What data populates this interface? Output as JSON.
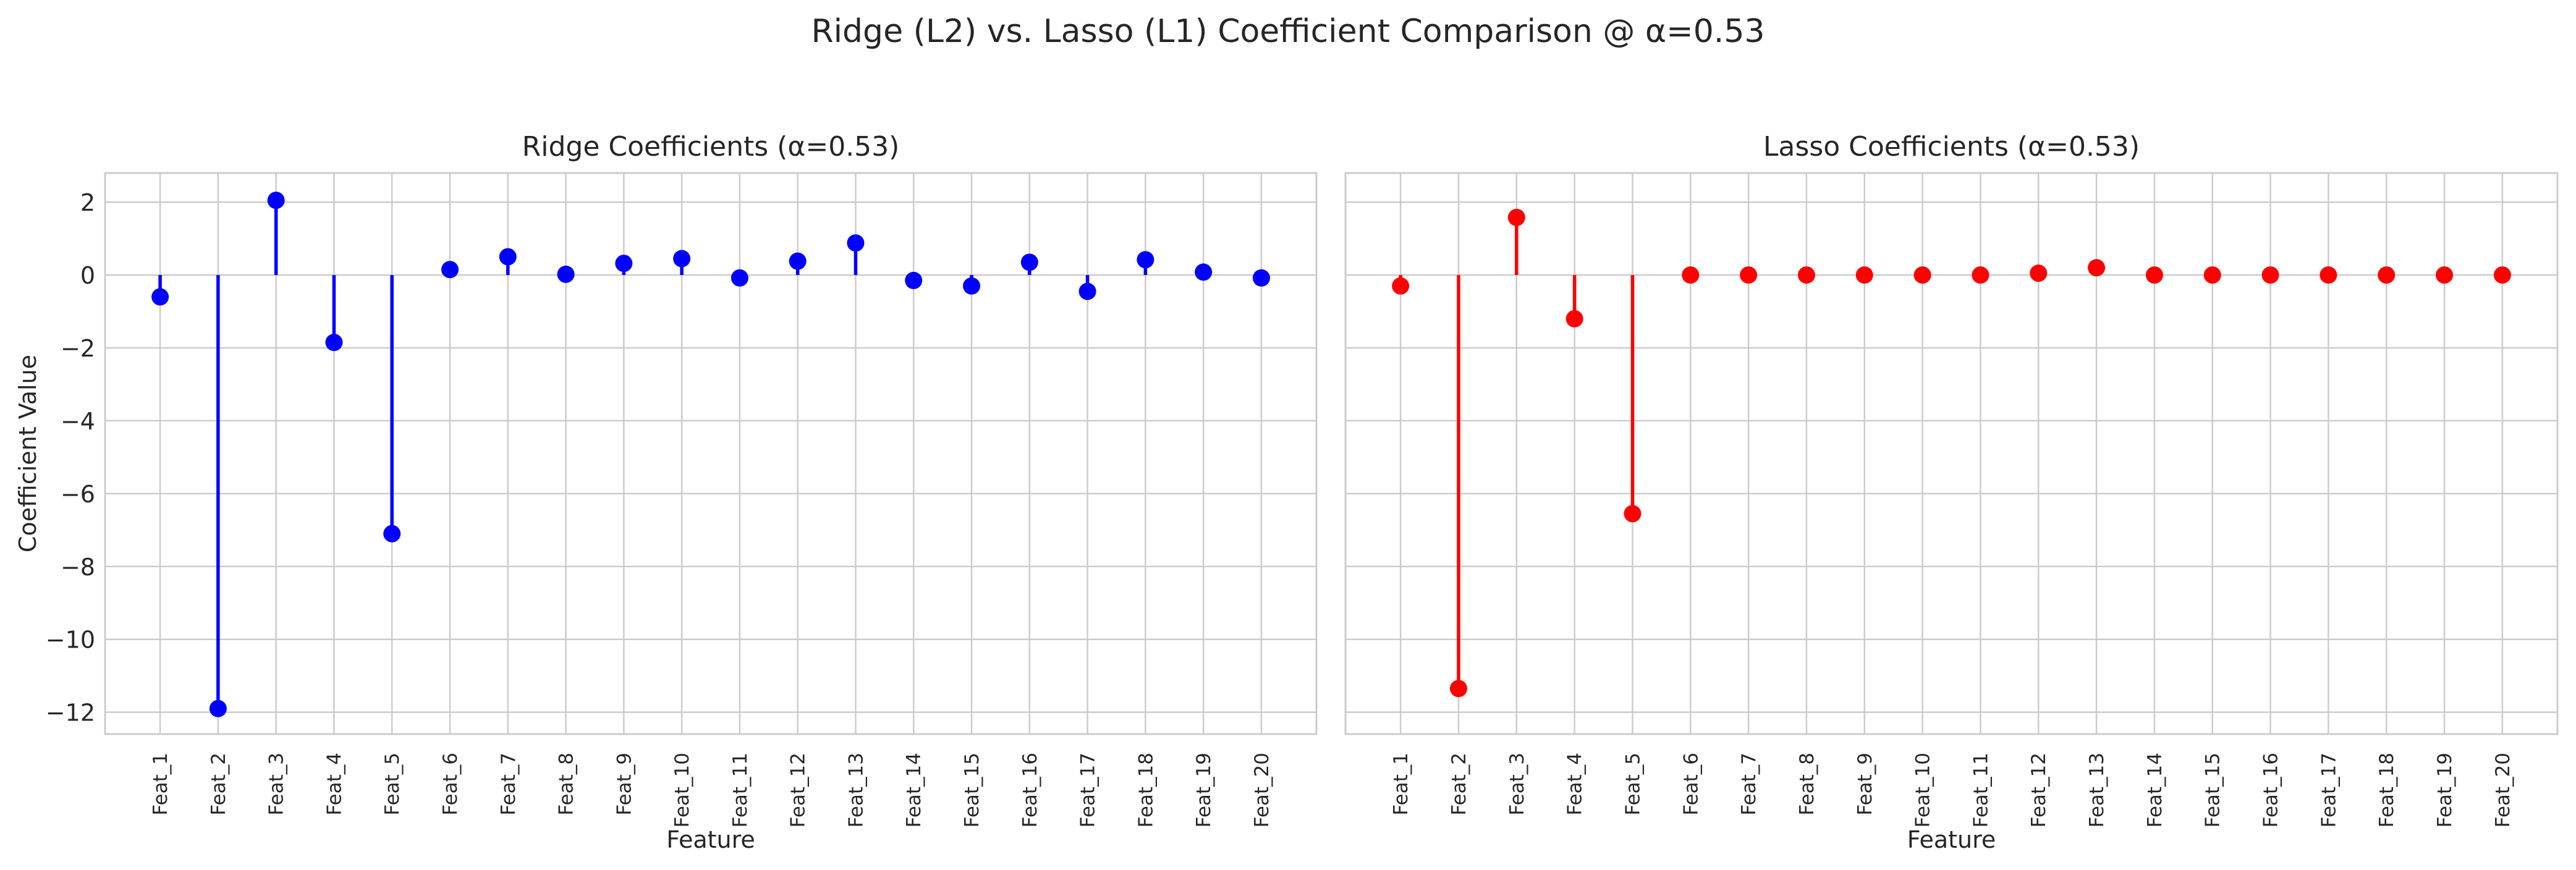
{
  "figure": {
    "suptitle": "Ridge (L2) vs. Lasso (L1) Coefficient Comparison @ α=0.53"
  },
  "chart_data": [
    {
      "type": "stem",
      "title": "Ridge Coefficients (α=0.53)",
      "xlabel": "Feature",
      "ylabel": "Coefficient Value",
      "categories": [
        "Feat_1",
        "Feat_2",
        "Feat_3",
        "Feat_4",
        "Feat_5",
        "Feat_6",
        "Feat_7",
        "Feat_8",
        "Feat_9",
        "Feat_10",
        "Feat_11",
        "Feat_12",
        "Feat_13",
        "Feat_14",
        "Feat_15",
        "Feat_16",
        "Feat_17",
        "Feat_18",
        "Feat_19",
        "Feat_20"
      ],
      "values": [
        -0.6,
        -11.9,
        2.05,
        -1.85,
        -7.1,
        0.15,
        0.5,
        0.02,
        0.32,
        0.45,
        -0.08,
        0.38,
        0.88,
        -0.15,
        -0.3,
        0.35,
        -0.45,
        0.42,
        0.08,
        -0.08
      ],
      "color": "#0000ff",
      "ylim": [
        -12.6,
        2.8
      ],
      "yticks": [
        2,
        0,
        -2,
        -4,
        -6,
        -8,
        -10,
        -12
      ],
      "grid": true
    },
    {
      "type": "stem",
      "title": "Lasso Coefficients (α=0.53)",
      "xlabel": "Feature",
      "ylabel": "",
      "categories": [
        "Feat_1",
        "Feat_2",
        "Feat_3",
        "Feat_4",
        "Feat_5",
        "Feat_6",
        "Feat_7",
        "Feat_8",
        "Feat_9",
        "Feat_10",
        "Feat_11",
        "Feat_12",
        "Feat_13",
        "Feat_14",
        "Feat_15",
        "Feat_16",
        "Feat_17",
        "Feat_18",
        "Feat_19",
        "Feat_20"
      ],
      "values": [
        -0.3,
        -11.35,
        1.58,
        -1.2,
        -6.55,
        0.0,
        0.0,
        0.0,
        0.0,
        0.0,
        0.0,
        0.05,
        0.2,
        0.0,
        0.0,
        0.0,
        0.0,
        0.0,
        0.0,
        0.0
      ],
      "color": "#ff0000",
      "ylim": [
        -12.6,
        2.8
      ],
      "yticks": [],
      "grid": true
    }
  ]
}
